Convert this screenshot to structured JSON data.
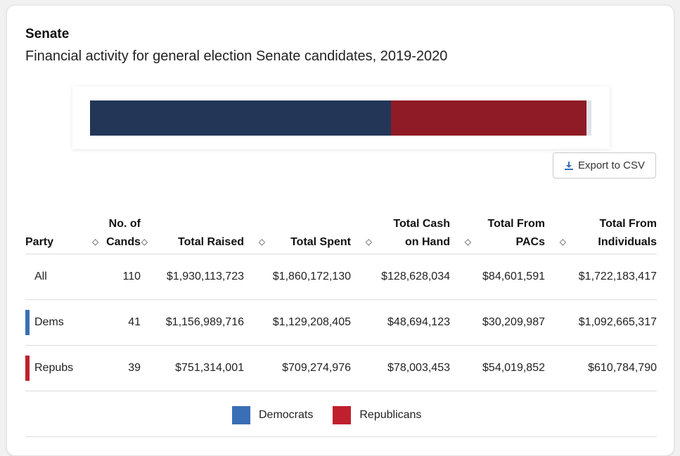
{
  "header": {
    "title": "Senate",
    "subtitle": "Financial activity for general election Senate candidates, 2019-2020"
  },
  "bar": {
    "segments": [
      {
        "party": "Democrats",
        "color": "#233658",
        "fraction": 0.6
      },
      {
        "party": "Republicans",
        "color": "#8e1b25",
        "fraction": 0.39
      }
    ],
    "remainder_color": "#dfe3e8"
  },
  "toolbar": {
    "export_label": "Export to CSV",
    "export_icon": "download-icon"
  },
  "table": {
    "headers": {
      "party": "Party",
      "cands_1": "No. of",
      "cands_2": "Cands",
      "raised": "Total Raised",
      "spent": "Total Spent",
      "cash_1": "Total Cash",
      "cash_2": "on Hand",
      "pacs_1": "Total From",
      "pacs_2": "PACs",
      "indiv_1": "Total From",
      "indiv_2": "Individuals"
    },
    "sort_icon": "sort-icon",
    "rows": [
      {
        "party": "All",
        "marker_color": "",
        "cands": "110",
        "raised": "$1,930,113,723",
        "spent": "$1,860,172,130",
        "cash": "$128,628,034",
        "pacs": "$84,601,591",
        "indiv": "$1,722,183,417"
      },
      {
        "party": "Dems",
        "marker_color": "#3a6fb5",
        "cands": "41",
        "raised": "$1,156,989,716",
        "spent": "$1,129,208,405",
        "cash": "$48,694,123",
        "pacs": "$30,209,987",
        "indiv": "$1,092,665,317"
      },
      {
        "party": "Repubs",
        "marker_color": "#c0202e",
        "cands": "39",
        "raised": "$751,314,001",
        "spent": "$709,274,976",
        "cash": "$78,003,453",
        "pacs": "$54,019,852",
        "indiv": "$610,784,790"
      }
    ]
  },
  "legend": {
    "items": [
      {
        "label": "Democrats",
        "color": "#3a6fb5"
      },
      {
        "label": "Republicans",
        "color": "#c0202e"
      }
    ]
  }
}
